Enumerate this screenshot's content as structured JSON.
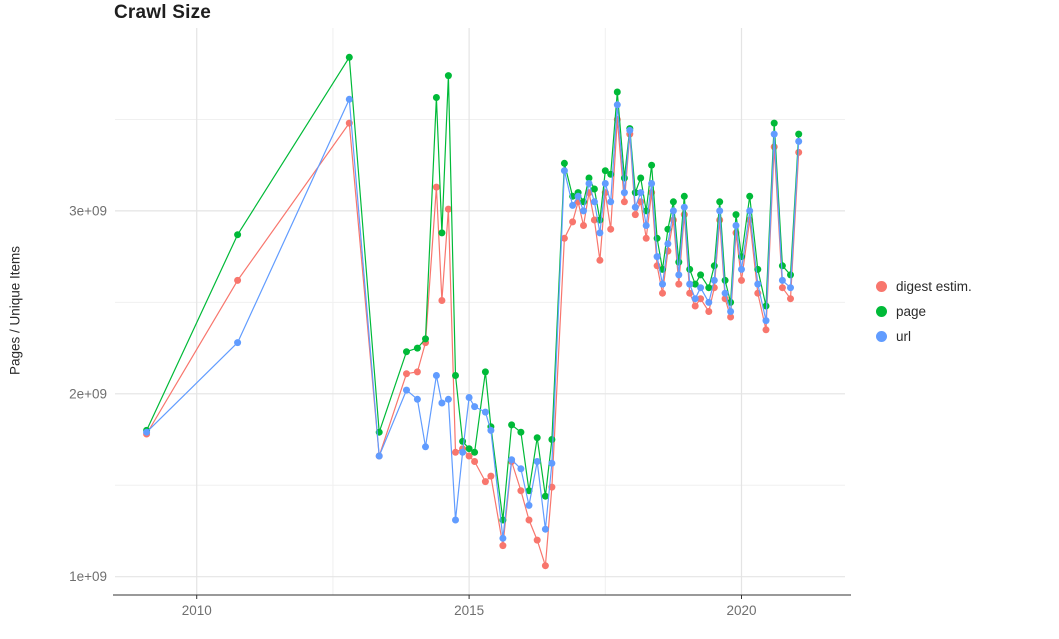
{
  "chart_data": {
    "type": "line",
    "title": "Crawl Size",
    "xlabel": "",
    "ylabel": "Pages / Unique Items",
    "y_unit": "items (axis labels in scientific notation, 1e+09 = 1 billion)",
    "xlim": [
      2008.5,
      2021.9
    ],
    "ylim": [
      0.9,
      4.0
    ],
    "x_ticks": [
      {
        "value": 2010,
        "label": "2010"
      },
      {
        "value": 2015,
        "label": "2015"
      },
      {
        "value": 2020,
        "label": "2020"
      }
    ],
    "x_minor_gridlines": [
      2012.5,
      2017.5
    ],
    "y_ticks": [
      {
        "value": 1,
        "label": "1e+09"
      },
      {
        "value": 2,
        "label": "2e+09"
      },
      {
        "value": 3,
        "label": "3e+09"
      }
    ],
    "y_minor_gridlines": [
      1.5,
      2.5,
      3.5
    ],
    "grid": true,
    "legend_position": "right",
    "series": [
      {
        "name": "digest estim.",
        "color": "#F8766D",
        "points": [
          [
            2009.08,
            1.78
          ],
          [
            2010.75,
            2.62
          ],
          [
            2012.8,
            3.48
          ],
          [
            2013.35,
            1.66
          ],
          [
            2013.85,
            2.11
          ],
          [
            2014.05,
            2.12
          ],
          [
            2014.2,
            2.28
          ],
          [
            2014.4,
            3.13
          ],
          [
            2014.5,
            2.51
          ],
          [
            2014.62,
            3.01
          ],
          [
            2014.75,
            1.68
          ],
          [
            2014.88,
            1.7
          ],
          [
            2015.0,
            1.66
          ],
          [
            2015.1,
            1.63
          ],
          [
            2015.3,
            1.52
          ],
          [
            2015.4,
            1.55
          ],
          [
            2015.62,
            1.17
          ],
          [
            2015.78,
            1.63
          ],
          [
            2015.95,
            1.47
          ],
          [
            2016.1,
            1.31
          ],
          [
            2016.25,
            1.2
          ],
          [
            2016.4,
            1.06
          ],
          [
            2016.52,
            1.49
          ],
          [
            2016.75,
            2.85
          ],
          [
            2016.9,
            2.94
          ],
          [
            2017.0,
            3.05
          ],
          [
            2017.1,
            2.92
          ],
          [
            2017.2,
            3.1
          ],
          [
            2017.3,
            2.95
          ],
          [
            2017.4,
            2.73
          ],
          [
            2017.5,
            3.1
          ],
          [
            2017.6,
            2.9
          ],
          [
            2017.72,
            3.5
          ],
          [
            2017.85,
            3.05
          ],
          [
            2017.95,
            3.42
          ],
          [
            2018.05,
            2.98
          ],
          [
            2018.15,
            3.05
          ],
          [
            2018.25,
            2.85
          ],
          [
            2018.35,
            3.1
          ],
          [
            2018.45,
            2.7
          ],
          [
            2018.55,
            2.55
          ],
          [
            2018.65,
            2.78
          ],
          [
            2018.75,
            2.95
          ],
          [
            2018.85,
            2.6
          ],
          [
            2018.95,
            2.98
          ],
          [
            2019.05,
            2.55
          ],
          [
            2019.15,
            2.48
          ],
          [
            2019.25,
            2.52
          ],
          [
            2019.4,
            2.45
          ],
          [
            2019.5,
            2.58
          ],
          [
            2019.6,
            2.95
          ],
          [
            2019.7,
            2.52
          ],
          [
            2019.8,
            2.42
          ],
          [
            2019.9,
            2.88
          ],
          [
            2020.0,
            2.62
          ],
          [
            2020.15,
            2.95
          ],
          [
            2020.3,
            2.55
          ],
          [
            2020.45,
            2.35
          ],
          [
            2020.6,
            3.35
          ],
          [
            2020.75,
            2.58
          ],
          [
            2020.9,
            2.52
          ],
          [
            2021.05,
            3.32
          ]
        ]
      },
      {
        "name": "page",
        "color": "#00BA38",
        "points": [
          [
            2009.08,
            1.8
          ],
          [
            2010.75,
            2.87
          ],
          [
            2012.8,
            3.84
          ],
          [
            2013.35,
            1.79
          ],
          [
            2013.85,
            2.23
          ],
          [
            2014.05,
            2.25
          ],
          [
            2014.2,
            2.3
          ],
          [
            2014.4,
            3.62
          ],
          [
            2014.5,
            2.88
          ],
          [
            2014.62,
            3.74
          ],
          [
            2014.75,
            2.1
          ],
          [
            2014.88,
            1.74
          ],
          [
            2015.0,
            1.7
          ],
          [
            2015.1,
            1.68
          ],
          [
            2015.3,
            2.12
          ],
          [
            2015.4,
            1.82
          ],
          [
            2015.62,
            1.31
          ],
          [
            2015.78,
            1.83
          ],
          [
            2015.95,
            1.79
          ],
          [
            2016.1,
            1.47
          ],
          [
            2016.25,
            1.76
          ],
          [
            2016.4,
            1.44
          ],
          [
            2016.52,
            1.75
          ],
          [
            2016.75,
            3.26
          ],
          [
            2016.9,
            3.08
          ],
          [
            2017.0,
            3.1
          ],
          [
            2017.1,
            3.05
          ],
          [
            2017.2,
            3.18
          ],
          [
            2017.3,
            3.12
          ],
          [
            2017.4,
            2.95
          ],
          [
            2017.5,
            3.22
          ],
          [
            2017.6,
            3.2
          ],
          [
            2017.72,
            3.65
          ],
          [
            2017.85,
            3.18
          ],
          [
            2017.95,
            3.45
          ],
          [
            2018.05,
            3.1
          ],
          [
            2018.15,
            3.18
          ],
          [
            2018.25,
            3.0
          ],
          [
            2018.35,
            3.25
          ],
          [
            2018.45,
            2.85
          ],
          [
            2018.55,
            2.68
          ],
          [
            2018.65,
            2.9
          ],
          [
            2018.75,
            3.05
          ],
          [
            2018.85,
            2.72
          ],
          [
            2018.95,
            3.08
          ],
          [
            2019.05,
            2.68
          ],
          [
            2019.15,
            2.6
          ],
          [
            2019.25,
            2.65
          ],
          [
            2019.4,
            2.58
          ],
          [
            2019.5,
            2.7
          ],
          [
            2019.6,
            3.05
          ],
          [
            2019.7,
            2.62
          ],
          [
            2019.8,
            2.5
          ],
          [
            2019.9,
            2.98
          ],
          [
            2020.0,
            2.75
          ],
          [
            2020.15,
            3.08
          ],
          [
            2020.3,
            2.68
          ],
          [
            2020.45,
            2.48
          ],
          [
            2020.6,
            3.48
          ],
          [
            2020.75,
            2.7
          ],
          [
            2020.9,
            2.65
          ],
          [
            2021.05,
            3.42
          ]
        ]
      },
      {
        "name": "url",
        "color": "#619CFF",
        "points": [
          [
            2009.08,
            1.79
          ],
          [
            2010.75,
            2.28
          ],
          [
            2012.8,
            3.61
          ],
          [
            2013.35,
            1.66
          ],
          [
            2013.85,
            2.02
          ],
          [
            2014.05,
            1.97
          ],
          [
            2014.2,
            1.71
          ],
          [
            2014.4,
            2.1
          ],
          [
            2014.5,
            1.95
          ],
          [
            2014.62,
            1.97
          ],
          [
            2014.75,
            1.31
          ],
          [
            2014.88,
            1.68
          ],
          [
            2015.0,
            1.98
          ],
          [
            2015.1,
            1.93
          ],
          [
            2015.3,
            1.9
          ],
          [
            2015.4,
            1.8
          ],
          [
            2015.62,
            1.21
          ],
          [
            2015.78,
            1.64
          ],
          [
            2015.95,
            1.59
          ],
          [
            2016.1,
            1.39
          ],
          [
            2016.25,
            1.63
          ],
          [
            2016.4,
            1.26
          ],
          [
            2016.52,
            1.62
          ],
          [
            2016.75,
            3.22
          ],
          [
            2016.9,
            3.03
          ],
          [
            2017.0,
            3.08
          ],
          [
            2017.1,
            3.0
          ],
          [
            2017.2,
            3.15
          ],
          [
            2017.3,
            3.05
          ],
          [
            2017.4,
            2.88
          ],
          [
            2017.5,
            3.15
          ],
          [
            2017.6,
            3.05
          ],
          [
            2017.72,
            3.58
          ],
          [
            2017.85,
            3.1
          ],
          [
            2017.95,
            3.44
          ],
          [
            2018.05,
            3.02
          ],
          [
            2018.15,
            3.1
          ],
          [
            2018.25,
            2.92
          ],
          [
            2018.35,
            3.15
          ],
          [
            2018.45,
            2.75
          ],
          [
            2018.55,
            2.6
          ],
          [
            2018.65,
            2.82
          ],
          [
            2018.75,
            3.0
          ],
          [
            2018.85,
            2.65
          ],
          [
            2018.95,
            3.02
          ],
          [
            2019.05,
            2.6
          ],
          [
            2019.15,
            2.52
          ],
          [
            2019.25,
            2.58
          ],
          [
            2019.4,
            2.5
          ],
          [
            2019.5,
            2.62
          ],
          [
            2019.6,
            3.0
          ],
          [
            2019.7,
            2.55
          ],
          [
            2019.8,
            2.45
          ],
          [
            2019.9,
            2.92
          ],
          [
            2020.0,
            2.68
          ],
          [
            2020.15,
            3.0
          ],
          [
            2020.3,
            2.6
          ],
          [
            2020.45,
            2.4
          ],
          [
            2020.6,
            3.42
          ],
          [
            2020.75,
            2.62
          ],
          [
            2020.9,
            2.58
          ],
          [
            2021.05,
            3.38
          ]
        ]
      }
    ],
    "style": {
      "major_gridline_color": "#e4e4e4",
      "minor_gridline_color": "#f0f0f0",
      "axis_line_color": "#333333",
      "background": "#ffffff"
    }
  }
}
